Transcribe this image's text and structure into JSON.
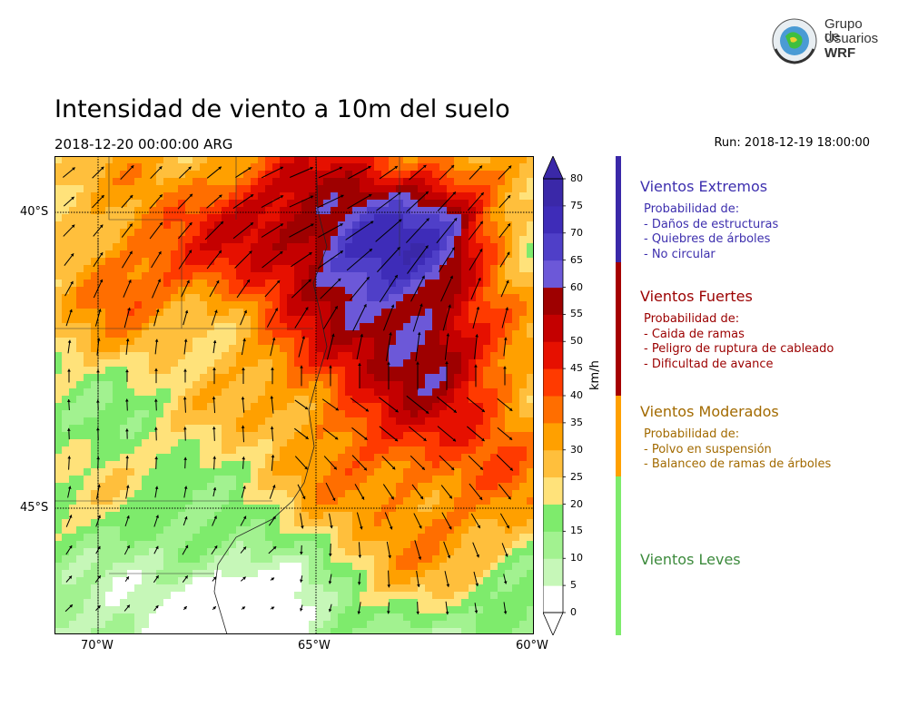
{
  "title": "Intensidad de viento a 10m del suelo",
  "valid_time": "2018-12-20 00:00:00 ARG",
  "run_time": "Run: 2018-12-19 18:00:00",
  "logo": {
    "line1": "Grupo de",
    "line2": "Usuarios",
    "line3": "WRF"
  },
  "map": {
    "lat_labels": [
      "40°S",
      "45°S"
    ],
    "lon_labels": [
      "70°W",
      "65°W",
      "60°W"
    ]
  },
  "colorbar": {
    "unit": "km/h",
    "ticks": [
      "0",
      "5",
      "10",
      "15",
      "20",
      "25",
      "30",
      "35",
      "40",
      "45",
      "50",
      "55",
      "60",
      "65",
      "70",
      "75",
      "80"
    ],
    "levels": [
      0,
      5,
      10,
      15,
      20,
      25,
      30,
      35,
      40,
      45,
      50,
      55,
      60,
      65,
      70,
      75,
      80
    ],
    "colors": [
      "#ffffff",
      "#c6f7b8",
      "#a2f290",
      "#7eeb6c",
      "#ffe27a",
      "#ffbf3c",
      "#ffa000",
      "#ff6e00",
      "#ff3a00",
      "#e61000",
      "#c40000",
      "#9e0000",
      "#6c58d8",
      "#4f3fc8",
      "#3e2cb8",
      "#3a28a8"
    ]
  },
  "categories": [
    {
      "title": "Vientos Extremos",
      "color": "#3d2fae",
      "lines": [
        "Probabilidad de:",
        "- Daños de estructuras",
        "- Quiebres de árboles",
        "- No circular"
      ]
    },
    {
      "title": "Vientos Fuertes",
      "color": "#9b0000",
      "lines": [
        "Probabilidad de:",
        "- Caida de ramas",
        "- Peligro de ruptura de cableado",
        "- Dificultad de avance"
      ]
    },
    {
      "title": "Vientos Moderados",
      "color": "#a26a00",
      "lines": [
        "Probabilidad de:",
        "- Polvo en suspensión",
        "- Balanceo de ramas de árboles"
      ]
    },
    {
      "title": "Vientos Leves",
      "color": "#3c8a3c",
      "lines": []
    }
  ],
  "category_bar_colors": [
    "#3a28a8",
    "#a50000",
    "#ffa000",
    "#7eeb6c"
  ]
}
